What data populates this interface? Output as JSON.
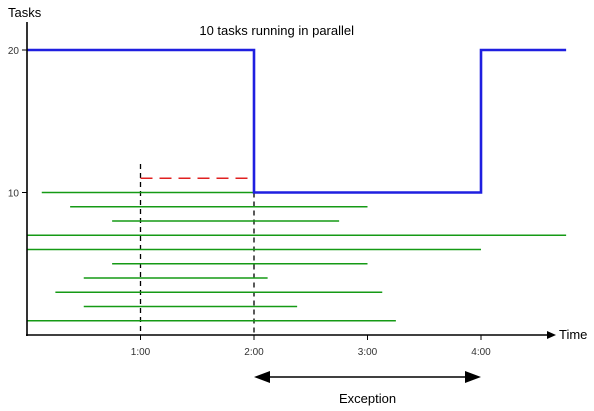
{
  "chart_data": {
    "type": "line",
    "title": "",
    "xlabel": "Time",
    "ylabel": "Tasks",
    "xlim": [
      0,
      4.6
    ],
    "ylim": [
      0,
      22
    ],
    "grid": false,
    "x_ticks": [
      {
        "value": 1,
        "label": "1:00"
      },
      {
        "value": 2,
        "label": "2:00"
      },
      {
        "value": 3,
        "label": "3:00"
      },
      {
        "value": 4,
        "label": "4:00"
      }
    ],
    "y_ticks": [
      {
        "value": 10,
        "label": "10"
      },
      {
        "value": 20,
        "label": "20"
      }
    ],
    "colors": {
      "capacity": "#1f1fe0",
      "tasks": "#159a15",
      "extra": "#e02020",
      "markers": "#000000"
    },
    "series": [
      {
        "role": "capacity",
        "points": [
          [
            0,
            20
          ],
          [
            2,
            20
          ],
          [
            2,
            10
          ],
          [
            4,
            10
          ],
          [
            4,
            20
          ],
          [
            4.75,
            20
          ]
        ]
      }
    ],
    "task_bars": [
      {
        "y": 10,
        "start": 0.13,
        "end": 2.63
      },
      {
        "y": 9,
        "start": 0.38,
        "end": 3.0
      },
      {
        "y": 8,
        "start": 0.75,
        "end": 2.75
      },
      {
        "y": 7,
        "start": 0.0,
        "end": 4.75
      },
      {
        "y": 6,
        "start": 0.0,
        "end": 4.0
      },
      {
        "y": 5,
        "start": 0.75,
        "end": 3.0
      },
      {
        "y": 4,
        "start": 0.5,
        "end": 2.12
      },
      {
        "y": 3,
        "start": 0.25,
        "end": 3.13
      },
      {
        "y": 2,
        "start": 0.5,
        "end": 2.38
      },
      {
        "y": 1,
        "start": 0.0,
        "end": 3.25
      }
    ],
    "dashed_extra": {
      "y": 11,
      "start": 1,
      "end": 2
    },
    "marker_lines": [
      {
        "x": 1,
        "from": 0,
        "to": 12
      },
      {
        "x": 2,
        "from": 0,
        "to": 10
      }
    ],
    "annotations": [
      {
        "text": "10 tasks running in parallel",
        "x": 2.2,
        "y": 22.5
      },
      {
        "text": "Exception",
        "span": [
          2,
          4
        ]
      }
    ]
  }
}
